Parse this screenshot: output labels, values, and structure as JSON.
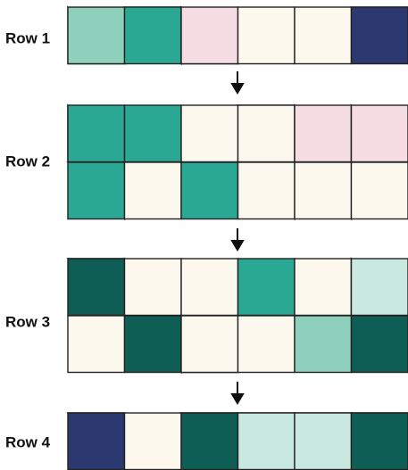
{
  "rows": [
    {
      "label": "Row 1"
    },
    {
      "label": "Row 2"
    },
    {
      "label": "Row 3"
    },
    {
      "label": "Row 4"
    }
  ]
}
